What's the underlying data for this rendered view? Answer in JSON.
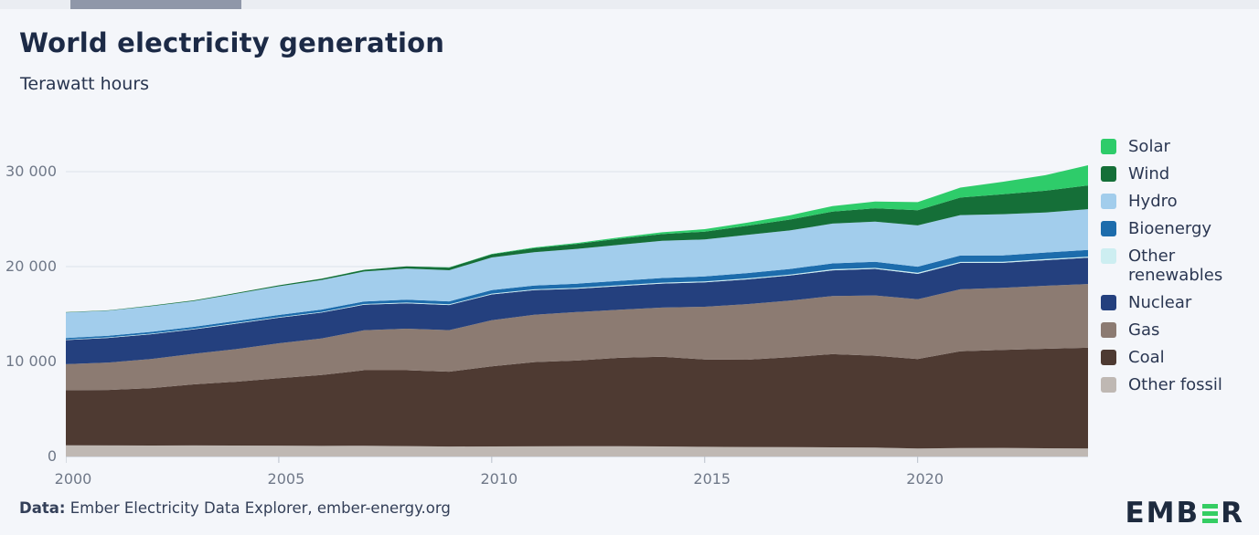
{
  "header": {
    "title": "World electricity generation",
    "subtitle": "Terawatt hours"
  },
  "footer": {
    "source_label": "Data:",
    "source_text": " Ember Electricity Data Explorer, ember-energy.org",
    "logo_prefix": "EMB",
    "logo_suffix": "R"
  },
  "colors": {
    "background": "#f4f6fa",
    "gridline": "#dce1e9",
    "tick": "#b9c0cb",
    "axis_text": "#6f7888",
    "logo_green": "#35cd63",
    "logo_navy": "#1d2a3e"
  },
  "chart_data": {
    "type": "area",
    "stacked": true,
    "title": "World electricity generation",
    "ylabel": "Terawatt hours",
    "grid": true,
    "legend_position": "right",
    "xlim": [
      2000,
      2024
    ],
    "ylim": [
      0,
      32000
    ],
    "xticks": [
      2000,
      2005,
      2010,
      2015,
      2020
    ],
    "yticks": [
      0,
      10000,
      20000,
      30000
    ],
    "ytick_labels": [
      "0",
      "10 000",
      "20 000",
      "30 000"
    ],
    "x": [
      2000,
      2001,
      2002,
      2003,
      2004,
      2005,
      2006,
      2007,
      2008,
      2009,
      2010,
      2011,
      2012,
      2013,
      2014,
      2015,
      2016,
      2017,
      2018,
      2019,
      2020,
      2021,
      2022,
      2023,
      2024
    ],
    "stack_order": "bottom-to-top",
    "legend_order_top_to_bottom": [
      "Solar",
      "Wind",
      "Hydro",
      "Bioenergy",
      "Other renewables",
      "Nuclear",
      "Gas",
      "Coal",
      "Other fossil"
    ],
    "series": [
      {
        "name": "Other fossil",
        "color": "#bfb8b3",
        "values": [
          1170,
          1160,
          1150,
          1160,
          1150,
          1140,
          1120,
          1130,
          1100,
          1050,
          1060,
          1070,
          1090,
          1080,
          1060,
          1020,
          1000,
          980,
          960,
          930,
          850,
          880,
          900,
          870,
          850
        ]
      },
      {
        "name": "Coal",
        "color": "#4e3a32",
        "values": [
          5809,
          5850,
          6053,
          6437,
          6725,
          7110,
          7460,
          7958,
          7983,
          7880,
          8437,
          8876,
          9015,
          9316,
          9438,
          9205,
          9192,
          9478,
          9818,
          9690,
          9421,
          10208,
          10317,
          10480,
          10600
        ]
      },
      {
        "name": "Gas",
        "color": "#8c7b72",
        "values": [
          2740,
          2883,
          3066,
          3225,
          3436,
          3676,
          3857,
          4204,
          4376,
          4374,
          4851,
          4988,
          5109,
          5066,
          5181,
          5543,
          5852,
          5960,
          6130,
          6345,
          6285,
          6518,
          6542,
          6634,
          6712
        ]
      },
      {
        "name": "Nuclear",
        "color": "#24407e",
        "values": [
          2540,
          2600,
          2610,
          2570,
          2680,
          2686,
          2717,
          2689,
          2680,
          2644,
          2718,
          2584,
          2462,
          2480,
          2533,
          2571,
          2612,
          2639,
          2701,
          2790,
          2674,
          2775,
          2632,
          2686,
          2768
        ]
      },
      {
        "name": "Other renewables",
        "color": "#cdeef1",
        "values": [
          52,
          54,
          57,
          60,
          62,
          65,
          68,
          72,
          76,
          80,
          85,
          88,
          92,
          95,
          98,
          100,
          103,
          105,
          108,
          110,
          112,
          114,
          116,
          118,
          120
        ]
      },
      {
        "name": "Bioenergy",
        "color": "#1d6cac",
        "values": [
          164,
          175,
          190,
          205,
          220,
          227,
          248,
          270,
          290,
          310,
          370,
          400,
          430,
          460,
          490,
          525,
          560,
          590,
          620,
          640,
          651,
          670,
          680,
          690,
          700
        ]
      },
      {
        "name": "Hydro",
        "color": "#a2cdec",
        "values": [
          2697,
          2638,
          2704,
          2721,
          2864,
          3017,
          3120,
          3160,
          3290,
          3280,
          3437,
          3511,
          3672,
          3801,
          3909,
          3891,
          4024,
          4060,
          4193,
          4222,
          4347,
          4257,
          4334,
          4210,
          4300
        ]
      },
      {
        "name": "Wind",
        "color": "#156f38",
        "values": [
          31,
          38,
          52,
          63,
          85,
          104,
          133,
          171,
          221,
          276,
          342,
          437,
          524,
          646,
          712,
          831,
          957,
          1136,
          1269,
          1420,
          1591,
          1848,
          2098,
          2304,
          2494
        ]
      },
      {
        "name": "Solar",
        "color": "#2ecc6a",
        "values": [
          1,
          1,
          2,
          2,
          3,
          4,
          5,
          7,
          12,
          20,
          32,
          63,
          97,
          132,
          197,
          256,
          328,
          445,
          574,
          708,
          853,
          1048,
          1310,
          1631,
          2132
        ]
      }
    ]
  }
}
